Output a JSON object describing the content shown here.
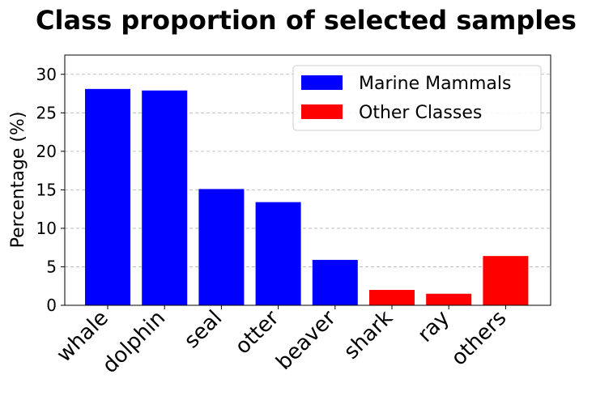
{
  "chart_data": {
    "type": "bar",
    "title": "Class proportion of selected samples",
    "xlabel": "",
    "ylabel": "Percentage (%)",
    "categories": [
      "whale",
      "dolphin",
      "seal",
      "otter",
      "beaver",
      "shark",
      "ray",
      "others"
    ],
    "values": [
      28.1,
      27.9,
      15.1,
      13.4,
      5.9,
      2.0,
      1.5,
      6.4
    ],
    "groups": [
      "Marine Mammals",
      "Marine Mammals",
      "Marine Mammals",
      "Marine Mammals",
      "Marine Mammals",
      "Other Classes",
      "Other Classes",
      "Other Classes"
    ],
    "ylim": [
      0,
      32.5
    ],
    "yticks": [
      0,
      5,
      10,
      15,
      20,
      25,
      30
    ],
    "grid": "y-dashed",
    "legend": {
      "placement": "top-right",
      "entries": [
        {
          "name": "Marine Mammals",
          "color": "#0000ff"
        },
        {
          "name": "Other Classes",
          "color": "#ff0000"
        }
      ]
    }
  }
}
